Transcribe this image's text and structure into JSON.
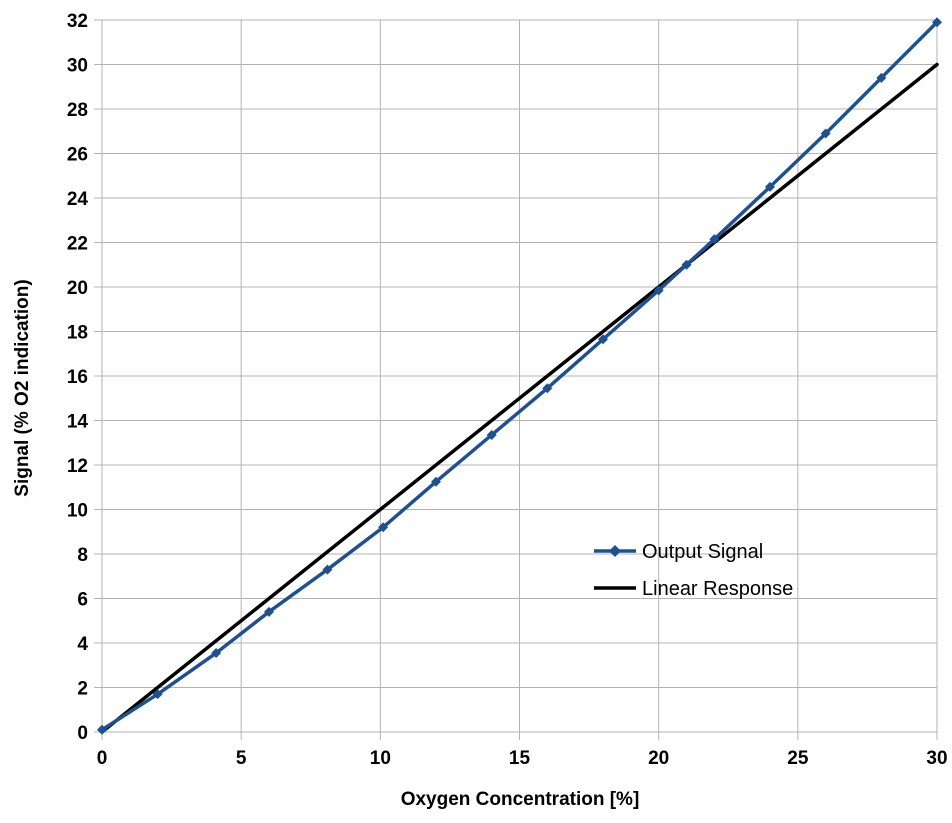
{
  "chart_data": {
    "type": "line",
    "title": "",
    "xlabel": "Oxygen Concentration [%]",
    "ylabel": "Signal (% O2 indication)",
    "xlim": [
      0,
      30
    ],
    "ylim": [
      0,
      32
    ],
    "x_ticks": [
      0,
      5,
      10,
      15,
      20,
      25,
      30
    ],
    "y_ticks": [
      0,
      2,
      4,
      6,
      8,
      10,
      12,
      14,
      16,
      18,
      20,
      22,
      24,
      26,
      28,
      30,
      32
    ],
    "grid": true,
    "legend_position": "center-right",
    "series": [
      {
        "name": "Output Signal",
        "color": "#1f5190",
        "marker": "diamond",
        "x": [
          0,
          2,
          4.1,
          6,
          8.1,
          10.1,
          12,
          14,
          16,
          18,
          20,
          21,
          22,
          24,
          26,
          28,
          30
        ],
        "y": [
          0.1,
          1.7,
          3.55,
          5.4,
          7.3,
          9.2,
          11.25,
          13.35,
          15.45,
          17.65,
          19.85,
          21.0,
          22.15,
          24.5,
          26.9,
          29.4,
          31.9
        ]
      },
      {
        "name": "Linear Response",
        "color": "#000000",
        "marker": "none",
        "x": [
          0,
          30
        ],
        "y": [
          0,
          30
        ]
      }
    ]
  }
}
